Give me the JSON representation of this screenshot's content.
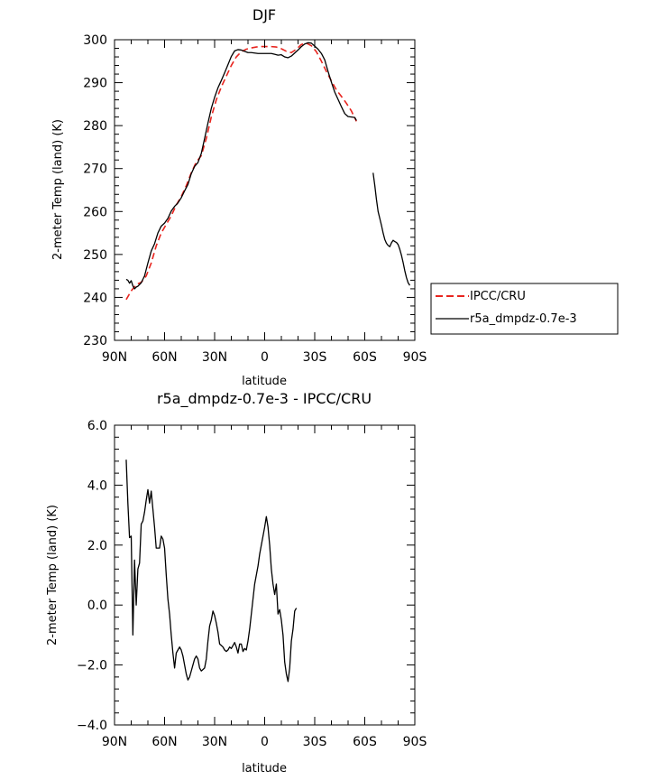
{
  "chart_data": [
    {
      "type": "line",
      "title": "DJF",
      "xlabel": "latitude",
      "ylabel": "2-meter Temp (land) (K)",
      "xlim": [
        -90,
        90
      ],
      "ylim": [
        230,
        300
      ],
      "x_ticks": [
        -90,
        -60,
        -30,
        0,
        30,
        60,
        90
      ],
      "x_tick_labels": [
        "90N",
        "60N",
        "30N",
        "0",
        "30S",
        "60S",
        "90S"
      ],
      "y_ticks": [
        230,
        240,
        250,
        260,
        270,
        280,
        290,
        300
      ],
      "y_tick_labels": [
        "230",
        "240",
        "250",
        "260",
        "270",
        "280",
        "290",
        "300"
      ],
      "grid": false,
      "legend": {
        "position": "right",
        "entries": [
          "IPCC/CRU",
          "r5a_dmpdz-0.7e-3"
        ]
      },
      "series": [
        {
          "name": "IPCC/CRU",
          "color": "#e8251f",
          "dashed": true,
          "points": [
            [
              -83,
              239.5
            ],
            [
              -80,
              241.5
            ],
            [
              -77,
              243
            ],
            [
              -74,
              243.5
            ],
            [
              -71,
              245
            ],
            [
              -68,
              248
            ],
            [
              -65,
              252
            ],
            [
              -62,
              255
            ],
            [
              -59,
              257
            ],
            [
              -56,
              259
            ],
            [
              -53,
              261.5
            ],
            [
              -50,
              263.5
            ],
            [
              -47,
              266
            ],
            [
              -44,
              269
            ],
            [
              -41,
              271.5
            ],
            [
              -38,
              273
            ],
            [
              -35,
              277
            ],
            [
              -32,
              282
            ],
            [
              -29,
              286
            ],
            [
              -26,
              289
            ],
            [
              -23,
              291.5
            ],
            [
              -20,
              294
            ],
            [
              -17,
              296
            ],
            [
              -14,
              297.2
            ],
            [
              -11,
              297.8
            ],
            [
              -8,
              298.1
            ],
            [
              -5,
              298.3
            ],
            [
              -2,
              298.4
            ],
            [
              1,
              298.4
            ],
            [
              4,
              298.4
            ],
            [
              7,
              298.3
            ],
            [
              10,
              297.9
            ],
            [
              13,
              297.3
            ],
            [
              16,
              297.0
            ],
            [
              19,
              297.8
            ],
            [
              22,
              298.9
            ],
            [
              25,
              299.2
            ],
            [
              28,
              298.6
            ],
            [
              31,
              297.2
            ],
            [
              34,
              295
            ],
            [
              37,
              292.6
            ],
            [
              40,
              290.4
            ],
            [
              43,
              288.3
            ],
            [
              46,
              286.8
            ],
            [
              49,
              285.2
            ],
            [
              52,
              283.4
            ],
            [
              55,
              281
            ]
          ]
        },
        {
          "name": "r5a_dmpdz-0.7e-3",
          "color": "#000000",
          "dashed": false,
          "points": [
            [
              [
                -83,
                244.2
              ],
              [
                -82,
                244
              ],
              [
                -81,
                243.3
              ],
              [
                -80,
                243.9
              ],
              [
                -79,
                242.7
              ],
              [
                -78,
                242
              ],
              [
                -77,
                242.4
              ],
              [
                -76,
                242.6
              ],
              [
                -75,
                243
              ],
              [
                -74,
                243.4
              ],
              [
                -72,
                245
              ],
              [
                -70,
                248
              ],
              [
                -68,
                250.8
              ],
              [
                -66,
                252.5
              ],
              [
                -64,
                255
              ],
              [
                -62,
                256.6
              ],
              [
                -60,
                257.3
              ],
              [
                -58,
                258.4
              ],
              [
                -56,
                260.1
              ],
              [
                -54,
                261.2
              ],
              [
                -52,
                262
              ],
              [
                -50,
                263.2
              ],
              [
                -48,
                264.8
              ],
              [
                -46,
                266.3
              ],
              [
                -44,
                268.8
              ],
              [
                -42,
                270.5
              ],
              [
                -40,
                271.4
              ],
              [
                -38,
                273.5
              ],
              [
                -36,
                277
              ],
              [
                -34,
                280.6
              ],
              [
                -32,
                284
              ],
              [
                -30,
                286.6
              ],
              [
                -28,
                288.8
              ],
              [
                -26,
                290.5
              ],
              [
                -24,
                292.3
              ],
              [
                -22,
                294.2
              ],
              [
                -20,
                296.1
              ],
              [
                -18,
                297.4
              ],
              [
                -16,
                297.7
              ],
              [
                -14,
                297.6
              ],
              [
                -12,
                297.3
              ],
              [
                -10,
                297.0
              ],
              [
                -8,
                297.0
              ],
              [
                -6,
                296.9
              ],
              [
                -4,
                296.8
              ],
              [
                -2,
                296.8
              ],
              [
                0,
                296.8
              ],
              [
                2,
                296.8
              ],
              [
                4,
                296.8
              ],
              [
                6,
                296.6
              ],
              [
                8,
                296.4
              ],
              [
                10,
                296.5
              ],
              [
                12,
                296.0
              ],
              [
                14,
                295.8
              ],
              [
                16,
                296.2
              ],
              [
                18,
                296.9
              ],
              [
                20,
                297.6
              ],
              [
                22,
                298.4
              ],
              [
                24,
                299.0
              ],
              [
                26,
                299.3
              ],
              [
                28,
                299.2
              ],
              [
                30,
                298.5
              ],
              [
                32,
                297.8
              ],
              [
                34,
                296.8
              ],
              [
                36,
                295.3
              ],
              [
                38,
                292.6
              ],
              [
                40,
                290.1
              ],
              [
                42,
                287.8
              ],
              [
                44,
                286.1
              ],
              [
                46,
                284.4
              ],
              [
                48,
                282.8
              ],
              [
                50,
                282.1
              ],
              [
                52,
                282
              ],
              [
                54,
                281.9
              ],
              [
                55,
                281.2
              ]
            ],
            [
              [
                65,
                269
              ],
              [
                66,
                266.1
              ],
              [
                67,
                262.8
              ],
              [
                68,
                260
              ],
              [
                69,
                258.4
              ],
              [
                70,
                256.8
              ],
              [
                71,
                255
              ],
              [
                72,
                253.5
              ],
              [
                73,
                252.6
              ],
              [
                74,
                252.1
              ],
              [
                75,
                251.8
              ],
              [
                76,
                252.7
              ],
              [
                77,
                253.3
              ],
              [
                78,
                253
              ],
              [
                79,
                252.8
              ],
              [
                80,
                252.3
              ],
              [
                81,
                251.2
              ],
              [
                82,
                249.8
              ],
              [
                83,
                248.1
              ],
              [
                84,
                246.2
              ],
              [
                85,
                244.6
              ],
              [
                86,
                243.4
              ],
              [
                87,
                242.8
              ]
            ]
          ]
        }
      ]
    },
    {
      "type": "line",
      "title": "r5a_dmpdz-0.7e-3 - IPCC/CRU",
      "xlabel": "latitude",
      "ylabel": "2-meter Temp (land) (K)",
      "xlim": [
        -90,
        90
      ],
      "ylim": [
        -4,
        6
      ],
      "x_ticks": [
        -90,
        -60,
        -30,
        0,
        30,
        60,
        90
      ],
      "x_tick_labels": [
        "90N",
        "60N",
        "30N",
        "0",
        "30S",
        "60S",
        "90S"
      ],
      "y_ticks": [
        -4,
        -2,
        0,
        2,
        4,
        6
      ],
      "y_tick_labels": [
        "−4.0",
        "−2.0",
        "0.0",
        "2.0",
        "4.0",
        "6.0"
      ],
      "grid": false,
      "series": [
        {
          "color": "#000000",
          "dashed": false,
          "points": [
            [
              -83,
              4.85
            ],
            [
              -82,
              3.4
            ],
            [
              -81,
              2.25
            ],
            [
              -80,
              2.3
            ],
            [
              -79,
              -1.0
            ],
            [
              -78,
              1.5
            ],
            [
              -77,
              0.0
            ],
            [
              -76,
              1.2
            ],
            [
              -75,
              1.4
            ],
            [
              -74,
              2.7
            ],
            [
              -73,
              2.8
            ],
            [
              -72,
              3.1
            ],
            [
              -71,
              3.5
            ],
            [
              -70,
              3.85
            ],
            [
              -69,
              3.4
            ],
            [
              -68,
              3.8
            ],
            [
              -67,
              3.2
            ],
            [
              -66,
              2.6
            ],
            [
              -65,
              1.9
            ],
            [
              -64,
              1.9
            ],
            [
              -63,
              1.9
            ],
            [
              -62,
              2.3
            ],
            [
              -61,
              2.2
            ],
            [
              -60,
              1.9
            ],
            [
              -59,
              1.0
            ],
            [
              -58,
              0.2
            ],
            [
              -57,
              -0.3
            ],
            [
              -56,
              -1.0
            ],
            [
              -55,
              -1.6
            ],
            [
              -54,
              -2.1
            ],
            [
              -53,
              -1.6
            ],
            [
              -52,
              -1.5
            ],
            [
              -51,
              -1.4
            ],
            [
              -50,
              -1.5
            ],
            [
              -49,
              -1.7
            ],
            [
              -48,
              -2.0
            ],
            [
              -47,
              -2.3
            ],
            [
              -46,
              -2.5
            ],
            [
              -45,
              -2.4
            ],
            [
              -44,
              -2.2
            ],
            [
              -43,
              -2.0
            ],
            [
              -42,
              -1.8
            ],
            [
              -41,
              -1.7
            ],
            [
              -40,
              -1.8
            ],
            [
              -39,
              -2.1
            ],
            [
              -38,
              -2.2
            ],
            [
              -37,
              -2.15
            ],
            [
              -36,
              -2.1
            ],
            [
              -35,
              -1.8
            ],
            [
              -34,
              -1.2
            ],
            [
              -33,
              -0.7
            ],
            [
              -32,
              -0.5
            ],
            [
              -31,
              -0.2
            ],
            [
              -30,
              -0.35
            ],
            [
              -29,
              -0.6
            ],
            [
              -28,
              -0.9
            ],
            [
              -27,
              -1.3
            ],
            [
              -26,
              -1.35
            ],
            [
              -25,
              -1.4
            ],
            [
              -24,
              -1.5
            ],
            [
              -23,
              -1.55
            ],
            [
              -22,
              -1.5
            ],
            [
              -21,
              -1.4
            ],
            [
              -20,
              -1.45
            ],
            [
              -19,
              -1.35
            ],
            [
              -18,
              -1.25
            ],
            [
              -17,
              -1.4
            ],
            [
              -16,
              -1.6
            ],
            [
              -15,
              -1.3
            ],
            [
              -14,
              -1.3
            ],
            [
              -13,
              -1.55
            ],
            [
              -12,
              -1.45
            ],
            [
              -11,
              -1.5
            ],
            [
              -10,
              -1.2
            ],
            [
              -9,
              -0.8
            ],
            [
              -8,
              -0.3
            ],
            [
              -7,
              0.2
            ],
            [
              -6,
              0.7
            ],
            [
              -5,
              1.0
            ],
            [
              -4,
              1.3
            ],
            [
              -3,
              1.7
            ],
            [
              -2,
              2.0
            ],
            [
              -1,
              2.3
            ],
            [
              0,
              2.6
            ],
            [
              1,
              2.95
            ],
            [
              2,
              2.6
            ],
            [
              3,
              2.0
            ],
            [
              4,
              1.2
            ],
            [
              5,
              0.7
            ],
            [
              6,
              0.35
            ],
            [
              7,
              0.7
            ],
            [
              8,
              -0.3
            ],
            [
              9,
              -0.15
            ],
            [
              10,
              -0.5
            ],
            [
              11,
              -1.0
            ],
            [
              12,
              -1.9
            ],
            [
              13,
              -2.3
            ],
            [
              14,
              -2.55
            ],
            [
              15,
              -2.1
            ],
            [
              16,
              -1.2
            ],
            [
              17,
              -0.8
            ],
            [
              18,
              -0.2
            ],
            [
              19,
              -0.1
            ]
          ]
        }
      ]
    }
  ]
}
